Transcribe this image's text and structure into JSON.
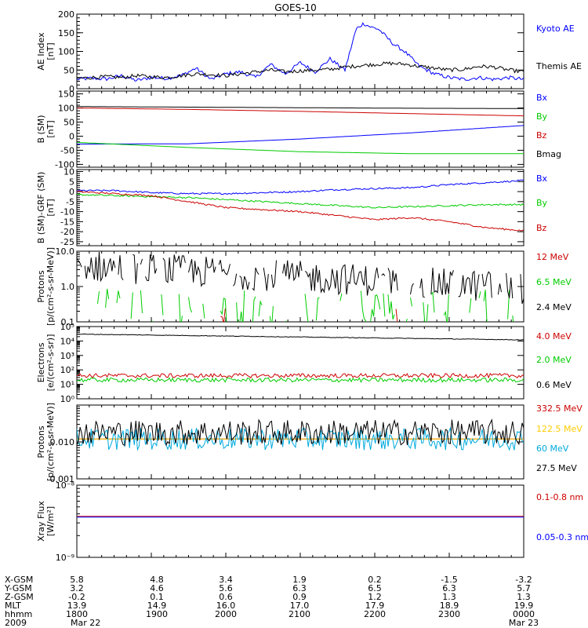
{
  "title": "GOES-10",
  "chart_data": [
    {
      "id": "ae",
      "type": "line",
      "ylabel": "AE Index",
      "yunit": "[nT]",
      "ylim": [
        0,
        200
      ],
      "yticks": [
        0,
        50,
        100,
        150,
        200
      ],
      "xlim": [
        1800,
        2400
      ],
      "series": [
        {
          "name": "Kyoto AE",
          "color": "#0000ff",
          "x": [
            1800,
            1820,
            1840,
            1860,
            1880,
            1900,
            1920,
            1940,
            1960,
            1980,
            2000,
            2020,
            2040,
            2060,
            2080,
            2100,
            2120,
            2140,
            2160,
            2175,
            2185,
            2195,
            2205,
            2215,
            2225,
            2240,
            2260,
            2280,
            2300,
            2320,
            2340,
            2360,
            2380,
            2400
          ],
          "values": [
            25,
            28,
            26,
            35,
            22,
            30,
            28,
            35,
            55,
            25,
            40,
            45,
            30,
            65,
            40,
            70,
            45,
            80,
            50,
            160,
            175,
            165,
            160,
            140,
            120,
            100,
            60,
            40,
            30,
            25,
            30,
            25,
            30,
            25
          ]
        },
        {
          "name": "Themis AE",
          "color": "#000000",
          "x": [
            1800,
            1820,
            1840,
            1860,
            1880,
            1900,
            1920,
            1940,
            1960,
            1980,
            2000,
            2020,
            2040,
            2060,
            2080,
            2100,
            2120,
            2140,
            2160,
            2180,
            2200,
            2220,
            2240,
            2260,
            2280,
            2300,
            2320,
            2340,
            2360,
            2380,
            2400
          ],
          "values": [
            28,
            30,
            32,
            30,
            35,
            32,
            30,
            35,
            40,
            38,
            35,
            40,
            45,
            50,
            45,
            48,
            50,
            52,
            58,
            62,
            65,
            68,
            66,
            60,
            55,
            50,
            52,
            60,
            58,
            50,
            45
          ]
        }
      ]
    },
    {
      "id": "b",
      "type": "line",
      "ylabel": "B (SM)",
      "yunit": "[nT]",
      "ylim": [
        -110,
        160
      ],
      "yticks": [
        -100,
        -50,
        0,
        50,
        100,
        150
      ],
      "xlim": [
        1800,
        2400
      ],
      "series": [
        {
          "name": "Bx",
          "color": "#0000ff",
          "x": [
            1800,
            1950,
            2100,
            2250,
            2400
          ],
          "values": [
            -28,
            -27,
            -10,
            12,
            38
          ]
        },
        {
          "name": "By",
          "color": "#00cc00",
          "x": [
            1800,
            1950,
            2100,
            2250,
            2400
          ],
          "values": [
            -22,
            -40,
            -55,
            -62,
            -62
          ]
        },
        {
          "name": "Bz",
          "color": "#cc0000",
          "x": [
            1800,
            1950,
            2100,
            2250,
            2400
          ],
          "values": [
            100,
            95,
            88,
            80,
            72
          ]
        },
        {
          "name": "Bmag",
          "color": "#000000",
          "x": [
            1800,
            1950,
            2100,
            2250,
            2400
          ],
          "values": [
            105,
            103,
            101,
            99,
            98
          ]
        }
      ]
    },
    {
      "id": "bdiff",
      "type": "line",
      "ylabel": "B (SM)-GRF (SM)",
      "yunit": "[nT]",
      "ylim": [
        -27,
        11
      ],
      "yticks": [
        -25,
        -20,
        -15,
        -10,
        -5,
        0,
        5,
        10
      ],
      "xlim": [
        1800,
        2400
      ],
      "series": [
        {
          "name": "Bx",
          "color": "#0000ff",
          "x": [
            1800,
            1850,
            1900,
            1950,
            2000,
            2050,
            2100,
            2150,
            2200,
            2250,
            2300,
            2350,
            2400
          ],
          "values": [
            0.5,
            0.5,
            -0.5,
            -1,
            -1,
            -0.5,
            0,
            1,
            1.5,
            2,
            3.5,
            4.5,
            5.5
          ]
        },
        {
          "name": "By",
          "color": "#00cc00",
          "x": [
            1800,
            1850,
            1900,
            1950,
            2000,
            2050,
            2100,
            2150,
            2200,
            2250,
            2300,
            2350,
            2400
          ],
          "values": [
            -1.5,
            -2,
            -2.5,
            -3,
            -4,
            -5,
            -6,
            -7,
            -8,
            -7.5,
            -7,
            -6.5,
            -6.5
          ]
        },
        {
          "name": "Bz",
          "color": "#cc0000",
          "x": [
            1800,
            1850,
            1900,
            1950,
            2000,
            2050,
            2100,
            2150,
            2200,
            2250,
            2300,
            2350,
            2400
          ],
          "values": [
            0,
            -1,
            -2,
            -5,
            -8,
            -9,
            -10,
            -12,
            -14,
            -13,
            -15,
            -18,
            -19.5
          ]
        }
      ]
    },
    {
      "id": "protons_low",
      "type": "line",
      "yscale": "log",
      "ylabel": "Protons",
      "yunit": "[p/(cm²-s-sr-MeV)]",
      "ylim": [
        0.1,
        10
      ],
      "yticks": [
        0.1,
        1.0,
        10.0
      ],
      "yticklabels": [
        "0.1",
        "1.0",
        "10.0"
      ],
      "xlim": [
        1800,
        2400
      ],
      "series": [
        {
          "name": "12 MeV",
          "color": "#cc0000",
          "base": 0.13,
          "spread": 0.4,
          "sparse": 0.85
        },
        {
          "name": "6.5 MeV",
          "color": "#00cc00",
          "base": 0.22,
          "spread": 0.6,
          "sparse": 0.55
        },
        {
          "name": "2.4 MeV",
          "color": "#000000",
          "start": 4.0,
          "end": 0.9,
          "spread": 0.45,
          "sparse": 0.15
        }
      ]
    },
    {
      "id": "electrons",
      "type": "line",
      "yscale": "log",
      "ylabel": "Electrons",
      "yunit": "[e/(cm²-s-sr)]",
      "ylim": [
        1,
        100000
      ],
      "yticks": [
        1,
        10,
        100,
        1000,
        10000,
        100000
      ],
      "yticklabels": [
        "10⁰",
        "10¹",
        "10²",
        "10³",
        "10⁴",
        "10⁵"
      ],
      "xlim": [
        1800,
        2400
      ],
      "series": [
        {
          "name": "4.0 MeV",
          "color": "#cc0000",
          "start": 40,
          "end": 40,
          "spread": 0.15
        },
        {
          "name": "2.0 MeV",
          "color": "#00cc00",
          "start": 20,
          "end": 20,
          "spread": 0.15
        },
        {
          "name": "0.6 MeV",
          "color": "#000000",
          "start": 30000,
          "end": 12000,
          "spread": 0.02
        }
      ]
    },
    {
      "id": "protons_high",
      "type": "line",
      "yscale": "log",
      "ylabel": "Protons",
      "yunit": "[p/(cm²-s-sr-MeV)]",
      "ylim": [
        0.001,
        0.1
      ],
      "yticks": [
        0.001,
        0.01,
        0.1
      ],
      "yticklabels": [
        "0.001",
        "0.010",
        ""
      ],
      "xlim": [
        1800,
        2400
      ],
      "series": [
        {
          "name": "332.5 MeV",
          "color": "#cc0000",
          "start": 0.012,
          "end": 0.012,
          "spread": 0.0
        },
        {
          "name": "122.5 MeV",
          "color": "#ffcc00",
          "start": 0.012,
          "end": 0.012,
          "spread": 0.0
        },
        {
          "name": "60 MeV",
          "color": "#00aadd",
          "start": 0.012,
          "end": 0.012,
          "spread": 0.3
        },
        {
          "name": "27.5 MeV",
          "color": "#000000",
          "start": 0.018,
          "end": 0.018,
          "spread": 0.35
        }
      ]
    },
    {
      "id": "xray",
      "type": "line",
      "yscale": "log",
      "ylabel": "Xray Flux",
      "yunit": "[W/m²]",
      "ylim": [
        1e-09,
        1e-08
      ],
      "yticks": [
        1e-09,
        1e-08
      ],
      "yticklabels": [
        "10⁻⁹",
        "10⁻⁸"
      ],
      "xlim": [
        1800,
        2400
      ],
      "series": [
        {
          "name": "0.1-0.8 nm",
          "color": "#cc0000",
          "start": 3.7e-09,
          "end": 3.7e-09,
          "spread": 0.0
        },
        {
          "name": "0.05-0.3 nm",
          "color": "#0000ff",
          "start": 3.6e-09,
          "end": 3.6e-09,
          "spread": 0.0
        }
      ]
    }
  ],
  "ephemeris": {
    "rows": [
      {
        "label": "X-GSM",
        "values": [
          "5.8",
          "4.8",
          "3.4",
          "1.9",
          "0.2",
          "-1.5",
          "-3.2"
        ]
      },
      {
        "label": "Y-GSM",
        "values": [
          "3.2",
          "4.6",
          "5.6",
          "6.3",
          "6.5",
          "6.3",
          "5.7"
        ]
      },
      {
        "label": "Z-GSM",
        "values": [
          "-0.2",
          "0.1",
          "0.6",
          "0.9",
          "1.2",
          "1.3",
          "1.3"
        ]
      },
      {
        "label": "MLT",
        "values": [
          "13.9",
          "14.9",
          "16.0",
          "17.0",
          "17.9",
          "18.9",
          "19.9"
        ]
      },
      {
        "label": "hhmm",
        "values": [
          "1800",
          "1900",
          "2000",
          "2100",
          "2200",
          "2300",
          "0000"
        ]
      },
      {
        "label": "2009",
        "values": [
          "Mar 22",
          "",
          "",
          "",
          "",
          "",
          "Mar 23"
        ]
      }
    ]
  }
}
